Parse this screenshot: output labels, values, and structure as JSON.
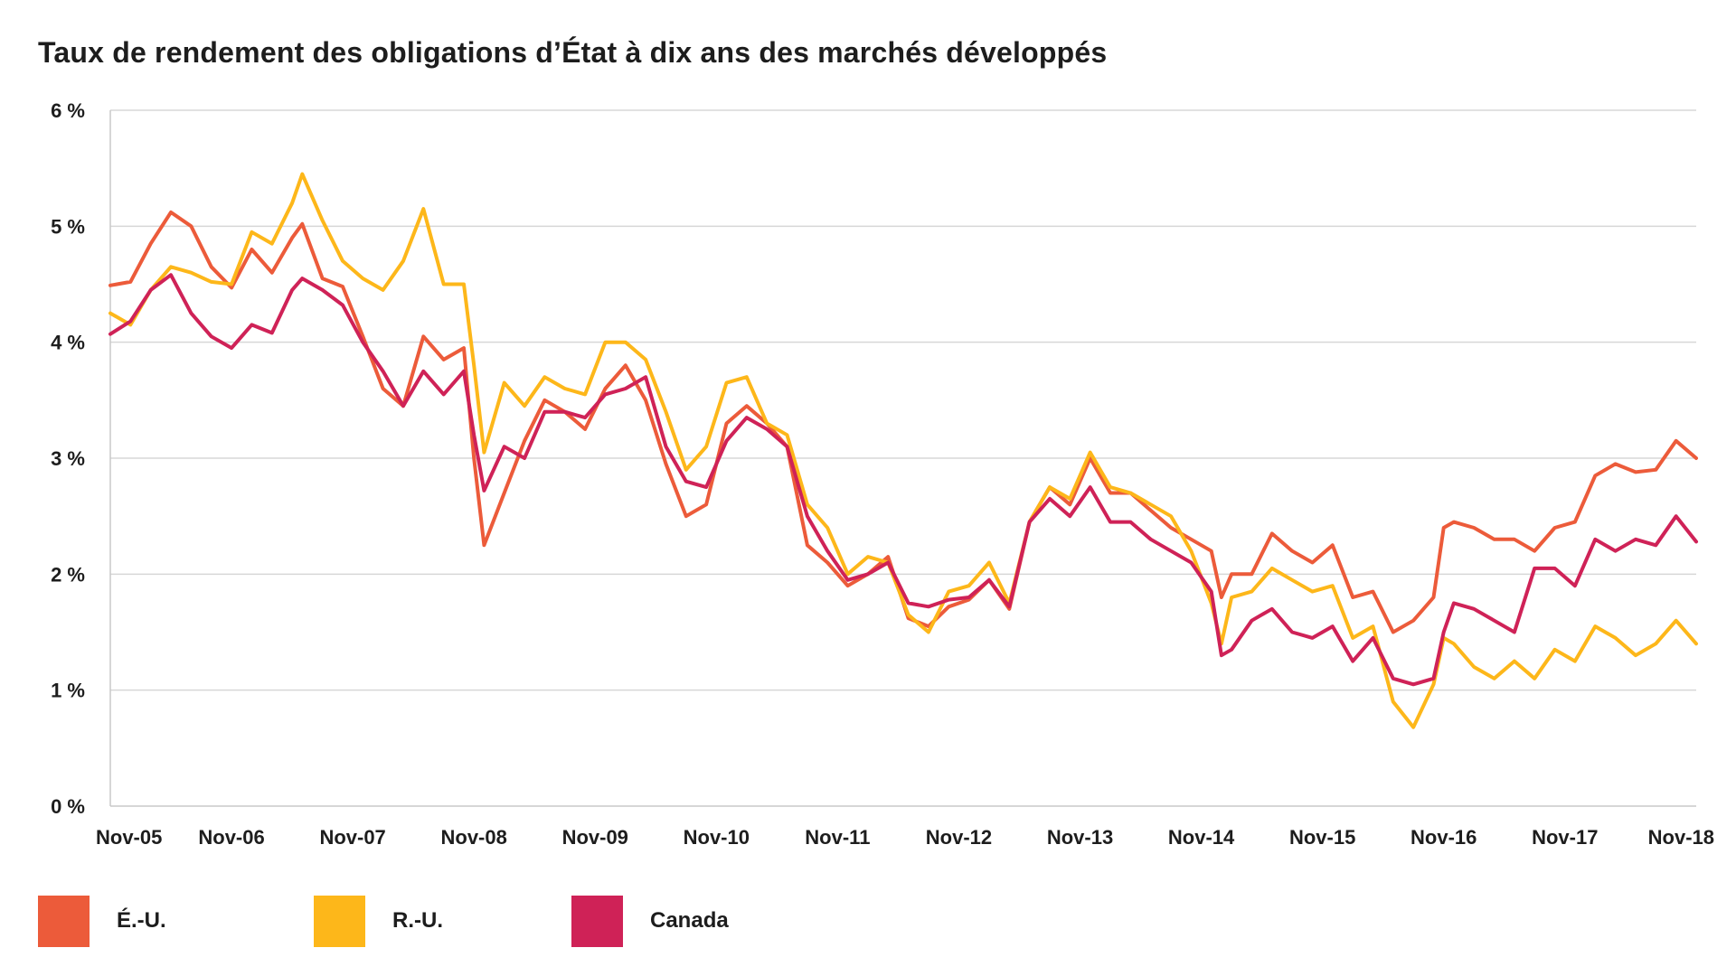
{
  "chart_data": {
    "type": "line",
    "title": "Taux de rendement des obligations d’État à dix ans des marchés développés",
    "xlabel": "",
    "ylabel": "",
    "ylim": [
      0,
      6
    ],
    "yticks": [
      0,
      1,
      2,
      3,
      4,
      5,
      6
    ],
    "ytick_labels": [
      "0 %",
      "1 %",
      "2 %",
      "3 %",
      "4 %",
      "5 %",
      "6 %"
    ],
    "x_start": "2005-11",
    "x_end": "2018-12",
    "xtick_labels": [
      "Nov-05",
      "Nov-06",
      "Nov-07",
      "Nov-08",
      "Nov-09",
      "Nov-10",
      "Nov-11",
      "Nov-12",
      "Nov-13",
      "Nov-14",
      "Nov-15",
      "Nov-16",
      "Nov-17",
      "Nov-18"
    ],
    "grid": "horizontal",
    "legend_position": "bottom-left",
    "series": [
      {
        "name": "É.-U.",
        "color": "#ec5b3a",
        "points": [
          [
            "2005-11",
            4.49
          ],
          [
            "2006-01",
            4.52
          ],
          [
            "2006-03",
            4.85
          ],
          [
            "2006-05",
            5.12
          ],
          [
            "2006-07",
            5.0
          ],
          [
            "2006-09",
            4.65
          ],
          [
            "2006-11",
            4.47
          ],
          [
            "2007-01",
            4.8
          ],
          [
            "2007-03",
            4.6
          ],
          [
            "2007-05",
            4.9
          ],
          [
            "2007-06",
            5.02
          ],
          [
            "2007-08",
            4.55
          ],
          [
            "2007-10",
            4.48
          ],
          [
            "2007-12",
            4.05
          ],
          [
            "2008-02",
            3.6
          ],
          [
            "2008-04",
            3.45
          ],
          [
            "2008-06",
            4.05
          ],
          [
            "2008-08",
            3.85
          ],
          [
            "2008-10",
            3.95
          ],
          [
            "2008-11",
            3.0
          ],
          [
            "2008-12",
            2.25
          ],
          [
            "2009-02",
            2.7
          ],
          [
            "2009-04",
            3.15
          ],
          [
            "2009-06",
            3.5
          ],
          [
            "2009-08",
            3.4
          ],
          [
            "2009-10",
            3.25
          ],
          [
            "2009-12",
            3.6
          ],
          [
            "2010-02",
            3.8
          ],
          [
            "2010-04",
            3.5
          ],
          [
            "2010-06",
            2.95
          ],
          [
            "2010-08",
            2.5
          ],
          [
            "2010-10",
            2.6
          ],
          [
            "2010-12",
            3.3
          ],
          [
            "2011-02",
            3.45
          ],
          [
            "2011-04",
            3.3
          ],
          [
            "2011-06",
            3.1
          ],
          [
            "2011-08",
            2.25
          ],
          [
            "2011-10",
            2.1
          ],
          [
            "2011-12",
            1.9
          ],
          [
            "2012-02",
            2.0
          ],
          [
            "2012-04",
            2.15
          ],
          [
            "2012-06",
            1.62
          ],
          [
            "2012-08",
            1.55
          ],
          [
            "2012-10",
            1.72
          ],
          [
            "2012-12",
            1.78
          ],
          [
            "2013-02",
            1.95
          ],
          [
            "2013-04",
            1.7
          ],
          [
            "2013-06",
            2.45
          ],
          [
            "2013-08",
            2.75
          ],
          [
            "2013-10",
            2.6
          ],
          [
            "2013-12",
            3.0
          ],
          [
            "2014-02",
            2.7
          ],
          [
            "2014-04",
            2.7
          ],
          [
            "2014-06",
            2.55
          ],
          [
            "2014-08",
            2.4
          ],
          [
            "2014-10",
            2.3
          ],
          [
            "2014-12",
            2.2
          ],
          [
            "2015-01",
            1.8
          ],
          [
            "2015-02",
            2.0
          ],
          [
            "2015-04",
            2.0
          ],
          [
            "2015-06",
            2.35
          ],
          [
            "2015-08",
            2.2
          ],
          [
            "2015-10",
            2.1
          ],
          [
            "2015-12",
            2.25
          ],
          [
            "2016-02",
            1.8
          ],
          [
            "2016-04",
            1.85
          ],
          [
            "2016-06",
            1.5
          ],
          [
            "2016-08",
            1.6
          ],
          [
            "2016-10",
            1.8
          ],
          [
            "2016-11",
            2.4
          ],
          [
            "2016-12",
            2.45
          ],
          [
            "2017-02",
            2.4
          ],
          [
            "2017-04",
            2.3
          ],
          [
            "2017-06",
            2.3
          ],
          [
            "2017-08",
            2.2
          ],
          [
            "2017-10",
            2.4
          ],
          [
            "2017-12",
            2.45
          ],
          [
            "2018-02",
            2.85
          ],
          [
            "2018-04",
            2.95
          ],
          [
            "2018-06",
            2.88
          ],
          [
            "2018-08",
            2.9
          ],
          [
            "2018-10",
            3.15
          ],
          [
            "2018-12",
            3.0
          ]
        ]
      },
      {
        "name": "R.-U.",
        "color": "#fdb71a",
        "points": [
          [
            "2005-11",
            4.25
          ],
          [
            "2006-01",
            4.15
          ],
          [
            "2006-03",
            4.45
          ],
          [
            "2006-05",
            4.65
          ],
          [
            "2006-07",
            4.6
          ],
          [
            "2006-09",
            4.52
          ],
          [
            "2006-11",
            4.5
          ],
          [
            "2007-01",
            4.95
          ],
          [
            "2007-03",
            4.85
          ],
          [
            "2007-05",
            5.2
          ],
          [
            "2007-06",
            5.45
          ],
          [
            "2007-08",
            5.05
          ],
          [
            "2007-10",
            4.7
          ],
          [
            "2007-12",
            4.55
          ],
          [
            "2008-02",
            4.45
          ],
          [
            "2008-04",
            4.7
          ],
          [
            "2008-06",
            5.15
          ],
          [
            "2008-08",
            4.5
          ],
          [
            "2008-10",
            4.5
          ],
          [
            "2008-11",
            3.8
          ],
          [
            "2008-12",
            3.05
          ],
          [
            "2009-02",
            3.65
          ],
          [
            "2009-04",
            3.45
          ],
          [
            "2009-06",
            3.7
          ],
          [
            "2009-08",
            3.6
          ],
          [
            "2009-10",
            3.55
          ],
          [
            "2009-12",
            4.0
          ],
          [
            "2010-02",
            4.0
          ],
          [
            "2010-04",
            3.85
          ],
          [
            "2010-06",
            3.4
          ],
          [
            "2010-08",
            2.9
          ],
          [
            "2010-10",
            3.1
          ],
          [
            "2010-12",
            3.65
          ],
          [
            "2011-02",
            3.7
          ],
          [
            "2011-04",
            3.3
          ],
          [
            "2011-06",
            3.2
          ],
          [
            "2011-08",
            2.6
          ],
          [
            "2011-10",
            2.4
          ],
          [
            "2011-12",
            2.0
          ],
          [
            "2012-02",
            2.15
          ],
          [
            "2012-04",
            2.1
          ],
          [
            "2012-06",
            1.65
          ],
          [
            "2012-08",
            1.5
          ],
          [
            "2012-10",
            1.85
          ],
          [
            "2012-12",
            1.9
          ],
          [
            "2013-02",
            2.1
          ],
          [
            "2013-04",
            1.75
          ],
          [
            "2013-06",
            2.45
          ],
          [
            "2013-08",
            2.75
          ],
          [
            "2013-10",
            2.65
          ],
          [
            "2013-12",
            3.05
          ],
          [
            "2014-02",
            2.75
          ],
          [
            "2014-04",
            2.7
          ],
          [
            "2014-06",
            2.6
          ],
          [
            "2014-08",
            2.5
          ],
          [
            "2014-10",
            2.2
          ],
          [
            "2014-12",
            1.75
          ],
          [
            "2015-01",
            1.4
          ],
          [
            "2015-02",
            1.8
          ],
          [
            "2015-04",
            1.85
          ],
          [
            "2015-06",
            2.05
          ],
          [
            "2015-08",
            1.95
          ],
          [
            "2015-10",
            1.85
          ],
          [
            "2015-12",
            1.9
          ],
          [
            "2016-02",
            1.45
          ],
          [
            "2016-04",
            1.55
          ],
          [
            "2016-06",
            0.9
          ],
          [
            "2016-08",
            0.68
          ],
          [
            "2016-10",
            1.05
          ],
          [
            "2016-11",
            1.45
          ],
          [
            "2016-12",
            1.4
          ],
          [
            "2017-02",
            1.2
          ],
          [
            "2017-04",
            1.1
          ],
          [
            "2017-06",
            1.25
          ],
          [
            "2017-08",
            1.1
          ],
          [
            "2017-10",
            1.35
          ],
          [
            "2017-12",
            1.25
          ],
          [
            "2018-02",
            1.55
          ],
          [
            "2018-04",
            1.45
          ],
          [
            "2018-06",
            1.3
          ],
          [
            "2018-08",
            1.4
          ],
          [
            "2018-10",
            1.6
          ],
          [
            "2018-12",
            1.4
          ]
        ]
      },
      {
        "name": "Canada",
        "color": "#cf2257",
        "points": [
          [
            "2005-11",
            4.07
          ],
          [
            "2006-01",
            4.18
          ],
          [
            "2006-03",
            4.45
          ],
          [
            "2006-05",
            4.58
          ],
          [
            "2006-07",
            4.25
          ],
          [
            "2006-09",
            4.05
          ],
          [
            "2006-11",
            3.95
          ],
          [
            "2007-01",
            4.15
          ],
          [
            "2007-03",
            4.08
          ],
          [
            "2007-05",
            4.45
          ],
          [
            "2007-06",
            4.55
          ],
          [
            "2007-08",
            4.45
          ],
          [
            "2007-10",
            4.32
          ],
          [
            "2007-12",
            4.0
          ],
          [
            "2008-02",
            3.75
          ],
          [
            "2008-04",
            3.45
          ],
          [
            "2008-06",
            3.75
          ],
          [
            "2008-08",
            3.55
          ],
          [
            "2008-10",
            3.75
          ],
          [
            "2008-11",
            3.2
          ],
          [
            "2008-12",
            2.72
          ],
          [
            "2009-02",
            3.1
          ],
          [
            "2009-04",
            3.0
          ],
          [
            "2009-06",
            3.4
          ],
          [
            "2009-08",
            3.4
          ],
          [
            "2009-10",
            3.35
          ],
          [
            "2009-12",
            3.55
          ],
          [
            "2010-02",
            3.6
          ],
          [
            "2010-04",
            3.7
          ],
          [
            "2010-06",
            3.1
          ],
          [
            "2010-08",
            2.8
          ],
          [
            "2010-10",
            2.75
          ],
          [
            "2010-12",
            3.15
          ],
          [
            "2011-02",
            3.35
          ],
          [
            "2011-04",
            3.25
          ],
          [
            "2011-06",
            3.1
          ],
          [
            "2011-08",
            2.5
          ],
          [
            "2011-10",
            2.2
          ],
          [
            "2011-12",
            1.95
          ],
          [
            "2012-02",
            2.0
          ],
          [
            "2012-04",
            2.1
          ],
          [
            "2012-06",
            1.75
          ],
          [
            "2012-08",
            1.72
          ],
          [
            "2012-10",
            1.78
          ],
          [
            "2012-12",
            1.8
          ],
          [
            "2013-02",
            1.95
          ],
          [
            "2013-04",
            1.72
          ],
          [
            "2013-06",
            2.45
          ],
          [
            "2013-08",
            2.65
          ],
          [
            "2013-10",
            2.5
          ],
          [
            "2013-12",
            2.75
          ],
          [
            "2014-02",
            2.45
          ],
          [
            "2014-04",
            2.45
          ],
          [
            "2014-06",
            2.3
          ],
          [
            "2014-08",
            2.2
          ],
          [
            "2014-10",
            2.1
          ],
          [
            "2014-12",
            1.85
          ],
          [
            "2015-01",
            1.3
          ],
          [
            "2015-02",
            1.35
          ],
          [
            "2015-04",
            1.6
          ],
          [
            "2015-06",
            1.7
          ],
          [
            "2015-08",
            1.5
          ],
          [
            "2015-10",
            1.45
          ],
          [
            "2015-12",
            1.55
          ],
          [
            "2016-02",
            1.25
          ],
          [
            "2016-04",
            1.45
          ],
          [
            "2016-06",
            1.1
          ],
          [
            "2016-08",
            1.05
          ],
          [
            "2016-10",
            1.1
          ],
          [
            "2016-11",
            1.5
          ],
          [
            "2016-12",
            1.75
          ],
          [
            "2017-02",
            1.7
          ],
          [
            "2017-04",
            1.6
          ],
          [
            "2017-06",
            1.5
          ],
          [
            "2017-08",
            2.05
          ],
          [
            "2017-10",
            2.05
          ],
          [
            "2017-12",
            1.9
          ],
          [
            "2018-02",
            2.3
          ],
          [
            "2018-04",
            2.2
          ],
          [
            "2018-06",
            2.3
          ],
          [
            "2018-08",
            2.25
          ],
          [
            "2018-10",
            2.5
          ],
          [
            "2018-12",
            2.28
          ]
        ]
      }
    ]
  }
}
